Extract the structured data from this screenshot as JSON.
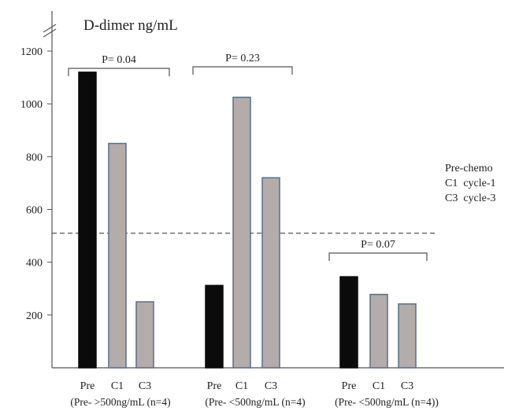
{
  "colors": {
    "pre_fill": "#0b0b0b",
    "cycle_fill": "#b3acaa",
    "cycle_stroke": "#5a6f8a",
    "axis": "#555555",
    "text": "#222222",
    "threshold_line": "#555555"
  },
  "chart_data": {
    "type": "bar",
    "title": "D-dimer ng/mL",
    "ylim": [
      0,
      1200
    ],
    "yticks": [
      "200",
      "400",
      "600",
      "800",
      "1000",
      "1200"
    ],
    "axis_break": true,
    "grid": false,
    "threshold": 510,
    "groups": [
      {
        "caption": "(Pre- >500ng/mL  (n=4)",
        "p_label": "P= 0.04",
        "bars": [
          {
            "label": "Pre",
            "value": 1120,
            "kind": "pre"
          },
          {
            "label": "C1",
            "value": 850,
            "kind": "cycle"
          },
          {
            "label": "C3",
            "value": 250,
            "kind": "cycle"
          }
        ]
      },
      {
        "caption": "(Pre- <500ng/mL  (n=4)",
        "p_label": "P= 0.23",
        "bars": [
          {
            "label": "Pre",
            "value": 312,
            "kind": "pre"
          },
          {
            "label": "C1",
            "value": 1025,
            "kind": "cycle"
          },
          {
            "label": "C3",
            "value": 720,
            "kind": "cycle"
          }
        ]
      },
      {
        "caption": "(Pre- <500ng/mL  (n=4))",
        "p_label": "P= 0.07",
        "bars": [
          {
            "label": "Pre",
            "value": 345,
            "kind": "pre"
          },
          {
            "label": "C1",
            "value": 278,
            "kind": "cycle"
          },
          {
            "label": "C3",
            "value": 242,
            "kind": "cycle"
          }
        ]
      }
    ],
    "legend": {
      "placement": "right",
      "lines": [
        "Pre-chemo",
        "C1  cycle-1",
        "C3  cycle-3"
      ]
    }
  }
}
